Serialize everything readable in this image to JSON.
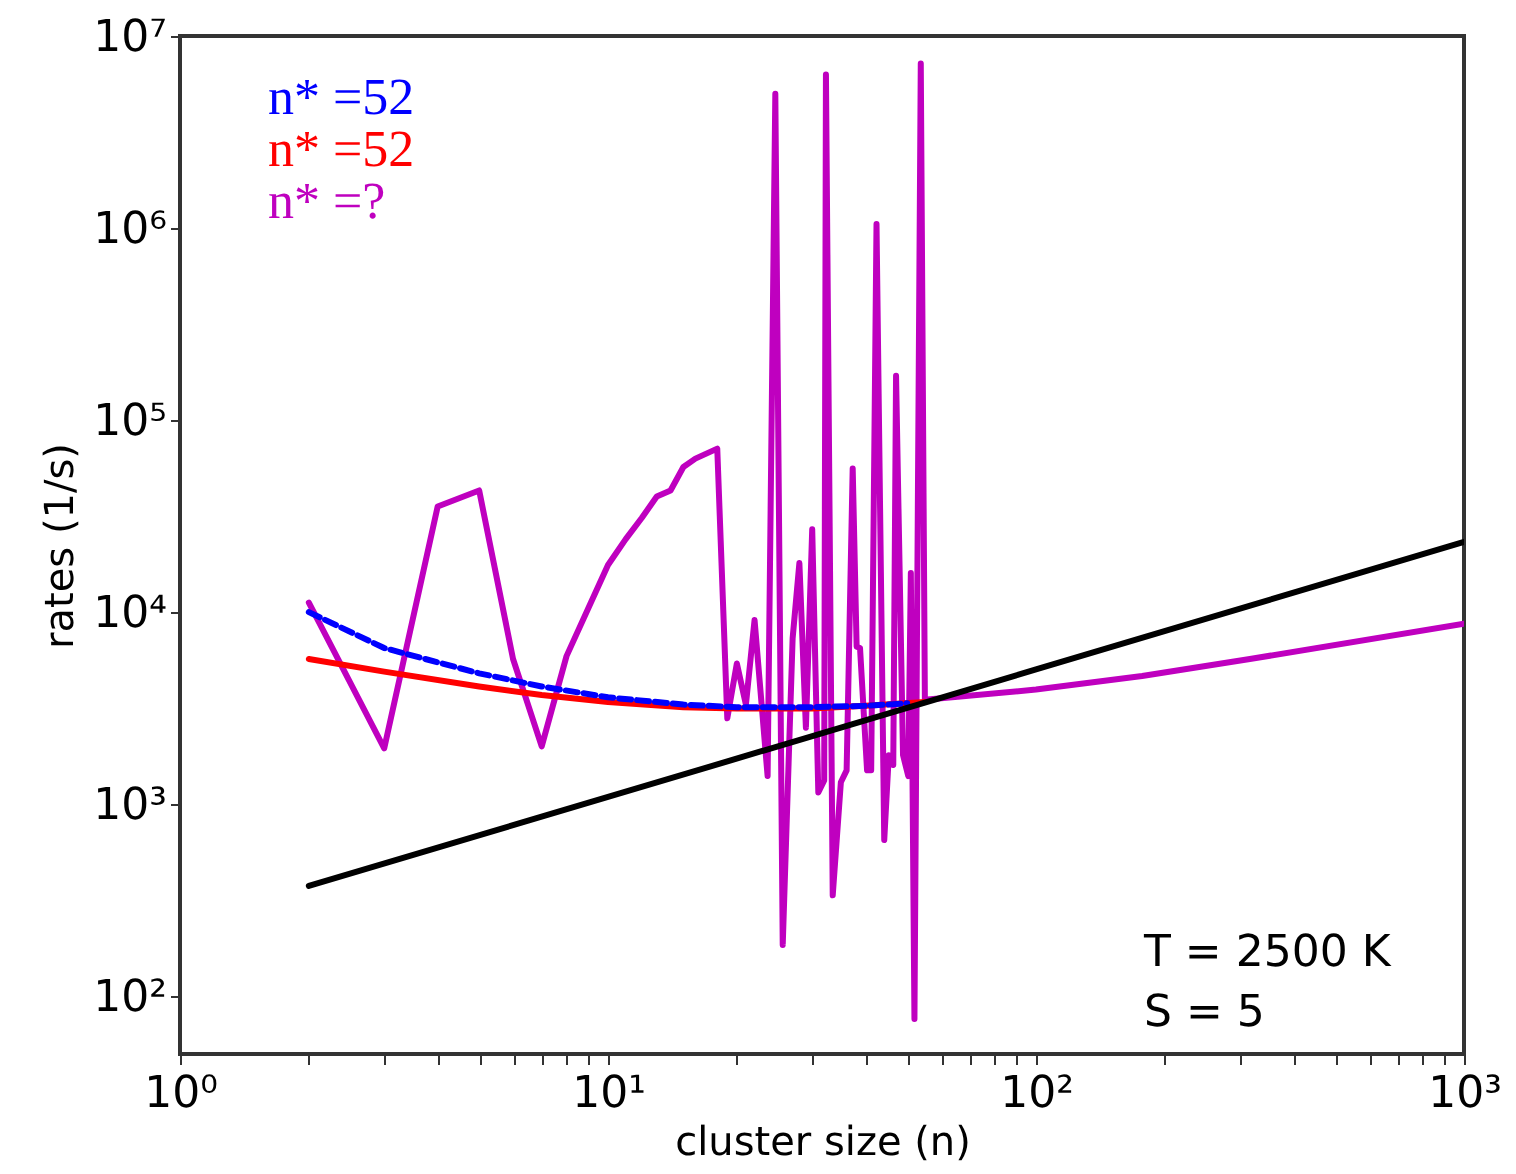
{
  "chart_data": {
    "type": "line",
    "xlabel": "cluster size (n)",
    "ylabel": "rates (1/s)",
    "log": "xy",
    "legend": "top left",
    "xlim": [
      1,
      1000
    ],
    "ylim": [
      50,
      10000000
    ],
    "xticks": [
      {
        "value": 1,
        "label": "10⁰"
      },
      {
        "value": 2,
        "label": null
      },
      {
        "value": 3,
        "label": null
      },
      {
        "value": 4,
        "label": null
      },
      {
        "value": 5,
        "label": null
      },
      {
        "value": 6,
        "label": null
      },
      {
        "value": 7,
        "label": null
      },
      {
        "value": 8,
        "label": null
      },
      {
        "value": 9,
        "label": null
      },
      {
        "value": 10,
        "label": "10¹"
      },
      {
        "value": 20,
        "label": null
      },
      {
        "value": 30,
        "label": null
      },
      {
        "value": 40,
        "label": null
      },
      {
        "value": 50,
        "label": null
      },
      {
        "value": 60,
        "label": null
      },
      {
        "value": 70,
        "label": null
      },
      {
        "value": 80,
        "label": null
      },
      {
        "value": 90,
        "label": null
      },
      {
        "value": 100,
        "label": "10²"
      },
      {
        "value": 200,
        "label": null
      },
      {
        "value": 300,
        "label": null
      },
      {
        "value": 400,
        "label": null
      },
      {
        "value": 500,
        "label": null
      },
      {
        "value": 600,
        "label": null
      },
      {
        "value": 700,
        "label": null
      },
      {
        "value": 800,
        "label": null
      },
      {
        "value": 900,
        "label": null
      },
      {
        "value": 1000,
        "label": "10³"
      }
    ],
    "yticks": [
      {
        "value": 100,
        "label": "10²"
      },
      {
        "value": 1000,
        "label": "10³"
      },
      {
        "value": 10000,
        "label": "10⁴"
      },
      {
        "value": 100000,
        "label": "10⁵"
      },
      {
        "value": 1000000,
        "label": "10⁶"
      },
      {
        "value": 10000000,
        "label": "10⁷"
      }
    ],
    "series": [
      {
        "color": "#000000",
        "x": [
          2,
          10,
          100,
          1000
        ],
        "values": [
          375,
          1090,
          5030,
          23200
        ]
      },
      {
        "name": "n* =52",
        "color": "#0000ff",
        "line_style": "dashed",
        "x": [
          2,
          3,
          5,
          7,
          10,
          15,
          20,
          30,
          40,
          50
        ],
        "values": [
          10000,
          6500,
          4800,
          4100,
          3600,
          3300,
          3200,
          3200,
          3250,
          3350
        ]
      },
      {
        "name": "n* =52",
        "color": "#ff0000",
        "x": [
          2,
          3,
          5,
          7,
          10,
          15,
          20,
          30,
          40,
          55
        ],
        "values": [
          5700,
          4900,
          4100,
          3700,
          3400,
          3200,
          3150,
          3150,
          3250,
          3400
        ]
      },
      {
        "name": "n* =?",
        "color": "#bf00bf",
        "x": [
          2,
          3,
          4,
          5,
          6,
          7,
          8,
          9,
          10,
          11,
          12,
          13,
          14,
          15,
          16,
          18,
          19,
          20,
          21,
          22,
          23.6,
          24.6,
          25.6,
          27,
          28,
          29,
          30,
          31,
          32,
          32.3,
          33.5,
          35,
          36.1,
          37.3,
          38.1,
          38.8,
          40.3,
          41.2,
          42.4,
          44.2,
          45.3,
          46.4,
          47.1,
          48.9,
          50.3,
          51,
          52,
          53.8,
          55,
          100,
          177,
          316,
          1000
        ],
        "values": [
          11200,
          1950,
          35500,
          43000,
          5700,
          2000,
          5900,
          10500,
          17600,
          24000,
          31000,
          40000,
          43000,
          57000,
          63000,
          71000,
          2800,
          5400,
          3300,
          9100,
          1400,
          5000000,
          185,
          7300,
          18000,
          2500,
          27000,
          1150,
          1330,
          6300000,
          335,
          1300,
          1500,
          56000,
          6600,
          6500,
          1500,
          1500,
          1050000,
          650,
          1800,
          1600,
          170000,
          1800,
          1400,
          16000,
          76,
          7200000,
          3500,
          3950,
          4650,
          5700,
          8700
        ]
      }
    ],
    "annotations": [
      "T = 2500 K",
      "S = 5"
    ]
  }
}
